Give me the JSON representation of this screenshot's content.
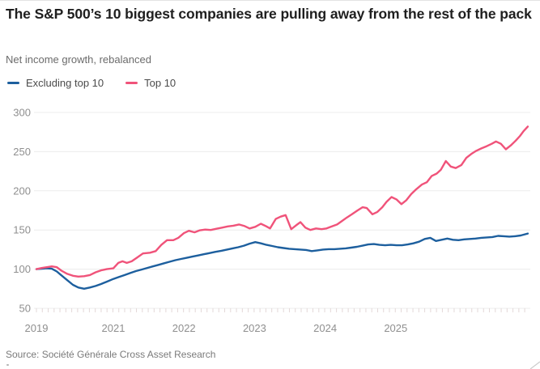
{
  "source": "Source: Société Générale Cross Asset Research",
  "colors": {
    "grid": "#ececec",
    "minor_tick": "#e3d8d8",
    "axis_text": "#8f8f8f",
    "title_text": "#1f1f1f",
    "subtitle_text": "#6b6b6b",
    "blue": "#1d5f9e",
    "pink": "#f0537a"
  },
  "chart_data": {
    "type": "line",
    "title": "The S&P 500’s 10 biggest companies are pulling away from the rest of the pack",
    "subtitle": "Net income growth, rebalanced",
    "grid": "horizontal",
    "legend_position": "top-left",
    "x_axis": {
      "tick_labels": [
        "2019",
        "2021",
        "2022",
        "2023",
        "2024",
        "2025"
      ],
      "tick_years": [
        2019,
        2021,
        2022,
        2023,
        2024,
        2025
      ],
      "note": "2020 tick label not shown on axis; minor ticks monthly"
    },
    "y_axis": {
      "ticks": [
        50,
        100,
        150,
        200,
        250,
        300
      ],
      "range": [
        50,
        300
      ]
    },
    "series": [
      {
        "name": "Excluding top 10",
        "color": "#1d5f9e",
        "points": [
          [
            2019.0,
            100
          ],
          [
            2019.15,
            100.5
          ],
          [
            2019.27,
            101
          ],
          [
            2019.4,
            100.5
          ],
          [
            2019.53,
            97
          ],
          [
            2019.65,
            92
          ],
          [
            2019.8,
            86
          ],
          [
            2019.95,
            80
          ],
          [
            2020.09,
            76.5
          ],
          [
            2020.24,
            75
          ],
          [
            2020.39,
            76.5
          ],
          [
            2020.54,
            78.5
          ],
          [
            2020.68,
            81
          ],
          [
            2020.83,
            84
          ],
          [
            2021.0,
            87.5
          ],
          [
            2021.08,
            90
          ],
          [
            2021.16,
            92.5
          ],
          [
            2021.24,
            95
          ],
          [
            2021.32,
            97.5
          ],
          [
            2021.4,
            99.5
          ],
          [
            2021.48,
            101.5
          ],
          [
            2021.56,
            103.5
          ],
          [
            2021.64,
            105.5
          ],
          [
            2021.72,
            107.5
          ],
          [
            2021.8,
            109.5
          ],
          [
            2021.88,
            111.5
          ],
          [
            2021.96,
            113
          ],
          [
            2022.04,
            114.5
          ],
          [
            2022.12,
            116
          ],
          [
            2022.2,
            117.5
          ],
          [
            2022.28,
            119
          ],
          [
            2022.36,
            120.5
          ],
          [
            2022.44,
            122
          ],
          [
            2022.53,
            123.5
          ],
          [
            2022.61,
            125
          ],
          [
            2022.69,
            126.5
          ],
          [
            2022.77,
            128
          ],
          [
            2022.85,
            130
          ],
          [
            2022.93,
            132.5
          ],
          [
            2023.01,
            134.5
          ],
          [
            2023.09,
            133
          ],
          [
            2023.17,
            131
          ],
          [
            2023.25,
            129.5
          ],
          [
            2023.33,
            128
          ],
          [
            2023.41,
            127
          ],
          [
            2023.49,
            126
          ],
          [
            2023.57,
            125.5
          ],
          [
            2023.65,
            125
          ],
          [
            2023.73,
            124.5
          ],
          [
            2023.81,
            123
          ],
          [
            2023.89,
            124
          ],
          [
            2023.97,
            125
          ],
          [
            2024.05,
            125.5
          ],
          [
            2024.13,
            125.5
          ],
          [
            2024.21,
            126
          ],
          [
            2024.29,
            126.5
          ],
          [
            2024.37,
            127.5
          ],
          [
            2024.45,
            128.5
          ],
          [
            2024.53,
            130
          ],
          [
            2024.61,
            131.5
          ],
          [
            2024.69,
            132
          ],
          [
            2024.77,
            131
          ],
          [
            2024.85,
            130.5
          ],
          [
            2024.93,
            131
          ],
          [
            2025.01,
            130.5
          ],
          [
            2025.09,
            130.5
          ],
          [
            2025.17,
            131.5
          ],
          [
            2025.25,
            133
          ],
          [
            2025.33,
            135
          ],
          [
            2025.41,
            138.5
          ],
          [
            2025.49,
            140
          ],
          [
            2025.57,
            136
          ],
          [
            2025.65,
            137.5
          ],
          [
            2025.73,
            139
          ],
          [
            2025.81,
            137.5
          ],
          [
            2025.89,
            137
          ],
          [
            2025.97,
            138
          ],
          [
            2026.05,
            138.5
          ],
          [
            2026.13,
            139
          ],
          [
            2026.21,
            140
          ],
          [
            2026.29,
            140.5
          ],
          [
            2026.37,
            141
          ],
          [
            2026.45,
            142.5
          ],
          [
            2026.53,
            142
          ],
          [
            2026.61,
            141.5
          ],
          [
            2026.69,
            142
          ],
          [
            2026.77,
            143
          ],
          [
            2026.87,
            145.5
          ]
        ]
      },
      {
        "name": "Top 10",
        "color": "#f0537a",
        "points": [
          [
            2019.0,
            100
          ],
          [
            2019.15,
            101.5
          ],
          [
            2019.27,
            102.5
          ],
          [
            2019.4,
            103.5
          ],
          [
            2019.53,
            102.5
          ],
          [
            2019.65,
            98
          ],
          [
            2019.8,
            94
          ],
          [
            2019.95,
            91.5
          ],
          [
            2020.09,
            90.5
          ],
          [
            2020.24,
            91
          ],
          [
            2020.39,
            92.5
          ],
          [
            2020.54,
            96
          ],
          [
            2020.68,
            98.5
          ],
          [
            2020.83,
            100
          ],
          [
            2021.0,
            101
          ],
          [
            2021.07,
            108
          ],
          [
            2021.13,
            110
          ],
          [
            2021.19,
            108
          ],
          [
            2021.26,
            110
          ],
          [
            2021.34,
            115
          ],
          [
            2021.42,
            120
          ],
          [
            2021.52,
            121
          ],
          [
            2021.6,
            123
          ],
          [
            2021.68,
            131
          ],
          [
            2021.76,
            137
          ],
          [
            2021.85,
            137
          ],
          [
            2021.92,
            140
          ],
          [
            2022.0,
            146
          ],
          [
            2022.07,
            149
          ],
          [
            2022.15,
            147
          ],
          [
            2022.22,
            149.5
          ],
          [
            2022.3,
            150.5
          ],
          [
            2022.38,
            150
          ],
          [
            2022.46,
            151.5
          ],
          [
            2022.54,
            153
          ],
          [
            2022.62,
            154.5
          ],
          [
            2022.7,
            155.5
          ],
          [
            2022.78,
            157
          ],
          [
            2022.86,
            155
          ],
          [
            2022.93,
            152
          ],
          [
            2023.01,
            154
          ],
          [
            2023.09,
            158
          ],
          [
            2023.16,
            155
          ],
          [
            2023.22,
            152
          ],
          [
            2023.3,
            164
          ],
          [
            2023.37,
            167
          ],
          [
            2023.44,
            169
          ],
          [
            2023.52,
            151
          ],
          [
            2023.59,
            156
          ],
          [
            2023.65,
            160
          ],
          [
            2023.72,
            153
          ],
          [
            2023.79,
            150
          ],
          [
            2023.87,
            152
          ],
          [
            2023.95,
            151
          ],
          [
            2024.02,
            152
          ],
          [
            2024.08,
            154
          ],
          [
            2024.17,
            157
          ],
          [
            2024.23,
            161
          ],
          [
            2024.31,
            166
          ],
          [
            2024.38,
            170
          ],
          [
            2024.46,
            175
          ],
          [
            2024.53,
            179
          ],
          [
            2024.59,
            178
          ],
          [
            2024.67,
            170
          ],
          [
            2024.74,
            173
          ],
          [
            2024.81,
            179
          ],
          [
            2024.87,
            186
          ],
          [
            2024.94,
            192
          ],
          [
            2025.01,
            189
          ],
          [
            2025.08,
            183
          ],
          [
            2025.15,
            188
          ],
          [
            2025.22,
            196
          ],
          [
            2025.29,
            202
          ],
          [
            2025.37,
            208
          ],
          [
            2025.44,
            211
          ],
          [
            2025.51,
            219
          ],
          [
            2025.58,
            222
          ],
          [
            2025.64,
            227
          ],
          [
            2025.71,
            238
          ],
          [
            2025.78,
            231
          ],
          [
            2025.85,
            229
          ],
          [
            2025.93,
            233
          ],
          [
            2026.0,
            242
          ],
          [
            2026.07,
            247
          ],
          [
            2026.14,
            251
          ],
          [
            2026.21,
            254
          ],
          [
            2026.29,
            257
          ],
          [
            2026.36,
            260
          ],
          [
            2026.42,
            263
          ],
          [
            2026.49,
            260
          ],
          [
            2026.56,
            253
          ],
          [
            2026.63,
            258
          ],
          [
            2026.7,
            264
          ],
          [
            2026.76,
            270
          ],
          [
            2026.81,
            276
          ],
          [
            2026.87,
            282
          ]
        ]
      }
    ]
  }
}
